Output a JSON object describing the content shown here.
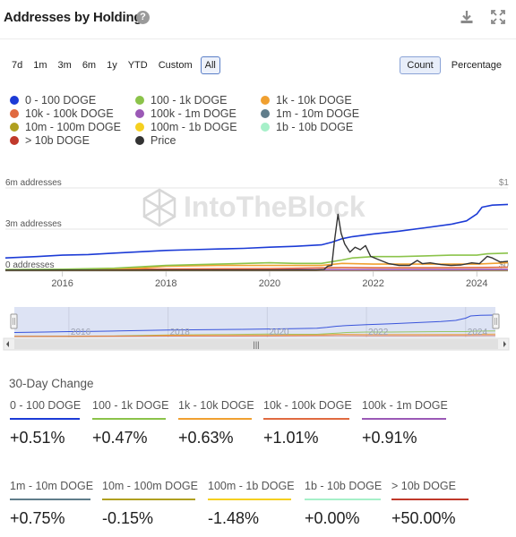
{
  "header": {
    "title": "Addresses by Holdings",
    "help_icon": "?"
  },
  "ranges": [
    "7d",
    "1m",
    "3m",
    "6m",
    "1y",
    "YTD",
    "Custom",
    "All"
  ],
  "active_range": "All",
  "modes": [
    "Count",
    "Percentage"
  ],
  "active_mode": "Count",
  "watermark": "IntoTheBlock",
  "colors": {
    "0-100": "#1c3bd6",
    "100-1k": "#8bc34a",
    "1k-10k": "#f0a030",
    "10k-100k": "#e06a40",
    "100k-1m": "#9b59b6",
    "1m-10m": "#607d8b",
    "10m-100m": "#b0a020",
    "100m-1b": "#f5d020",
    "1b-10b": "#a6f0c9",
    "10b+": "#c0392b",
    "price": "#333333"
  },
  "legend": [
    {
      "key": "0-100",
      "label": "0 - 100 DOGE"
    },
    {
      "key": "100-1k",
      "label": "100 - 1k DOGE"
    },
    {
      "key": "1k-10k",
      "label": "1k - 10k DOGE"
    },
    {
      "key": "10k-100k",
      "label": "10k - 100k DOGE"
    },
    {
      "key": "100k-1m",
      "label": "100k - 1m DOGE"
    },
    {
      "key": "1m-10m",
      "label": "1m - 10m DOGE"
    },
    {
      "key": "10m-100m",
      "label": "10m - 100m DOGE"
    },
    {
      "key": "100m-1b",
      "label": "100m - 1b DOGE"
    },
    {
      "key": "1b-10b",
      "label": "1b - 10b DOGE"
    },
    {
      "key": "10b+",
      "label": "> 10b DOGE"
    },
    {
      "key": "price",
      "label": "Price"
    }
  ],
  "chart_data": {
    "type": "line",
    "xlim": [
      2014.9,
      2024.6
    ],
    "x_ticks": [
      2016,
      2018,
      2020,
      2022,
      2024
    ],
    "y_axis_left": {
      "ticks": [
        0,
        3,
        6
      ],
      "tick_labels": [
        "0 addresses",
        "3m addresses",
        "6m addresses"
      ],
      "unit": "m addresses",
      "ylim": [
        0,
        6
      ]
    },
    "y_axis_right": {
      "ticks": [
        0,
        1
      ],
      "tick_labels": [
        "$0",
        "$1"
      ],
      "ylim": [
        0,
        1
      ]
    },
    "grid": true,
    "series": [
      {
        "key": "0-100",
        "axis": "left",
        "x": [
          2014.9,
          2015.5,
          2016.0,
          2016.5,
          2017.0,
          2017.5,
          2018.0,
          2018.5,
          2019.0,
          2019.5,
          2020.0,
          2020.5,
          2021.0,
          2021.2,
          2021.4,
          2021.6,
          2022.0,
          2022.5,
          2023.0,
          2023.5,
          2023.8,
          2024.0,
          2024.1,
          2024.3,
          2024.6
        ],
        "y": [
          0.9,
          1.0,
          1.1,
          1.15,
          1.25,
          1.35,
          1.45,
          1.5,
          1.55,
          1.6,
          1.68,
          1.75,
          1.85,
          2.05,
          2.3,
          2.45,
          2.65,
          2.85,
          3.1,
          3.35,
          3.6,
          4.1,
          4.6,
          4.75,
          4.8
        ]
      },
      {
        "key": "100-1k",
        "axis": "left",
        "x": [
          2014.9,
          2016.0,
          2017.0,
          2018.0,
          2019.0,
          2020.0,
          2020.5,
          2021.0,
          2021.4,
          2021.6,
          2022.0,
          2022.5,
          2023.0,
          2023.5,
          2024.0,
          2024.2,
          2024.6
        ],
        "y": [
          0.05,
          0.08,
          0.15,
          0.35,
          0.45,
          0.55,
          0.5,
          0.5,
          0.75,
          0.9,
          1.0,
          1.0,
          1.05,
          1.1,
          1.1,
          1.2,
          1.25
        ]
      },
      {
        "key": "1k-10k",
        "axis": "left",
        "x": [
          2014.9,
          2016.0,
          2017.5,
          2018.0,
          2019.0,
          2020.0,
          2021.0,
          2021.4,
          2022.0,
          2023.0,
          2024.0,
          2024.6
        ],
        "y": [
          0.02,
          0.04,
          0.15,
          0.3,
          0.35,
          0.35,
          0.35,
          0.5,
          0.45,
          0.45,
          0.45,
          0.55
        ]
      },
      {
        "key": "10k-100k",
        "axis": "left",
        "x": [
          2014.9,
          2016.0,
          2018.0,
          2020.0,
          2021.4,
          2022.0,
          2023.0,
          2024.0,
          2024.6
        ],
        "y": [
          0.02,
          0.03,
          0.1,
          0.12,
          0.2,
          0.18,
          0.18,
          0.2,
          0.22
        ]
      },
      {
        "key": "100k-1m",
        "axis": "left",
        "x": [
          2014.9,
          2024.6
        ],
        "y": [
          0.02,
          0.06
        ]
      },
      {
        "key": "1m-10m",
        "axis": "left",
        "x": [
          2014.9,
          2024.6
        ],
        "y": [
          0.01,
          0.03
        ]
      },
      {
        "key": "10m-100m",
        "axis": "left",
        "x": [
          2014.9,
          2024.6
        ],
        "y": [
          0.0,
          0.01
        ]
      },
      {
        "key": "100m-1b",
        "axis": "left",
        "x": [
          2014.9,
          2024.6
        ],
        "y": [
          0.0,
          0.0
        ]
      },
      {
        "key": "1b-10b",
        "axis": "left",
        "x": [
          2014.9,
          2024.6
        ],
        "y": [
          0.0,
          0.0
        ]
      },
      {
        "key": "10b+",
        "axis": "left",
        "x": [
          2014.9,
          2024.6
        ],
        "y": [
          0.0,
          0.0
        ]
      },
      {
        "key": "price",
        "axis": "right",
        "x": [
          2014.9,
          2020.9,
          2021.05,
          2021.12,
          2021.2,
          2021.25,
          2021.32,
          2021.38,
          2021.45,
          2021.55,
          2021.65,
          2021.75,
          2021.85,
          2021.95,
          2022.1,
          2022.3,
          2022.5,
          2022.7,
          2022.85,
          2022.95,
          2023.1,
          2023.3,
          2023.5,
          2023.7,
          2023.9,
          2024.05,
          2024.2,
          2024.3,
          2024.45,
          2024.6
        ],
        "y": [
          0.002,
          0.003,
          0.01,
          0.05,
          0.06,
          0.35,
          0.68,
          0.45,
          0.32,
          0.22,
          0.28,
          0.25,
          0.3,
          0.17,
          0.13,
          0.08,
          0.06,
          0.06,
          0.12,
          0.08,
          0.09,
          0.07,
          0.06,
          0.065,
          0.09,
          0.08,
          0.17,
          0.15,
          0.1,
          0.11
        ]
      }
    ]
  },
  "navigator": {
    "x_ticks": [
      2016,
      2018,
      2020,
      2022,
      2024
    ],
    "scroll_grip": "|||"
  },
  "change": {
    "title": "30-Day Change",
    "items": [
      {
        "key": "0-100",
        "label": "0 - 100 DOGE",
        "value": "+0.51%"
      },
      {
        "key": "100-1k",
        "label": "100 - 1k DOGE",
        "value": "+0.47%"
      },
      {
        "key": "1k-10k",
        "label": "1k - 10k DOGE",
        "value": "+0.63%"
      },
      {
        "key": "10k-100k",
        "label": "10k - 100k DOGE",
        "value": "+1.01%"
      },
      {
        "key": "100k-1m",
        "label": "100k - 1m DOGE",
        "value": "+0.91%"
      },
      {
        "key": "1m-10m",
        "label": "1m - 10m DOGE",
        "value": "+0.75%"
      },
      {
        "key": "10m-100m",
        "label": "10m - 100m DOGE",
        "value": "-0.15%"
      },
      {
        "key": "100m-1b",
        "label": "100m - 1b DOGE",
        "value": "-1.48%"
      },
      {
        "key": "1b-10b",
        "label": "1b - 10b DOGE",
        "value": "+0.00%"
      },
      {
        "key": "10b+",
        "label": "> 10b DOGE",
        "value": "+50.00%"
      }
    ]
  }
}
